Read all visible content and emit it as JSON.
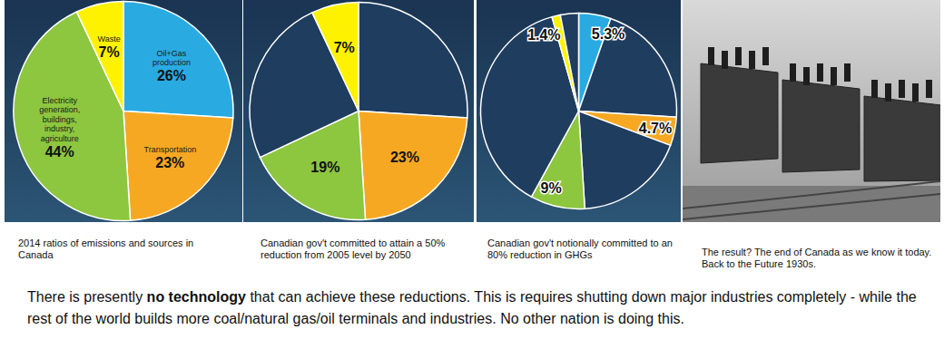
{
  "chart_data": [
    {
      "type": "pie",
      "caption": "2014 ratios of emissions and sources in Canada",
      "categories": [
        "Oil+Gas production",
        "Transportation",
        "Electricity generation, buildings, industry, agriculture",
        "Waste"
      ],
      "values": [
        26,
        23,
        44,
        7
      ],
      "value_labels": [
        "26%",
        "23%",
        "44%",
        "7%"
      ],
      "colors": [
        "#29abe2",
        "#f7a823",
        "#8dc63f",
        "#fff200"
      ],
      "data_labels": true
    },
    {
      "type": "pie",
      "caption": "Canadian gov't committed to attain a 50% reduction from 2005 level by 2050",
      "categories": [
        null,
        null,
        null,
        null,
        null
      ],
      "values": [
        26,
        23,
        19,
        25,
        7
      ],
      "value_labels": [
        null,
        "23%",
        "19%",
        null,
        "7%"
      ],
      "colors": [
        "#1f3d5f",
        "#f7a823",
        "#8dc63f",
        "#1f3d5f",
        "#fff200"
      ],
      "data_labels": true
    },
    {
      "type": "pie",
      "caption": "Canadian gov't notionally committed to an 80% reduction in GHGs",
      "categories": [
        null,
        null,
        null,
        null,
        null,
        null,
        null,
        null
      ],
      "values": [
        5.3,
        20.7,
        4.7,
        18.3,
        9,
        37.6,
        1.4,
        3
      ],
      "value_labels": [
        "5.3%",
        null,
        "4.7%",
        null,
        "9%",
        null,
        "1.4%",
        null
      ],
      "colors": [
        "#29abe2",
        "#1f3d5f",
        "#f7a823",
        "#1f3d5f",
        "#8dc63f",
        "#1f3d5f",
        "#fff200",
        "#1f3d5f"
      ],
      "data_labels": true
    }
  ],
  "photo": {
    "caption": "The result? The end of Canada as we know it today. Back to the Future 1930s."
  },
  "footer": [
    "There is presently ",
    "no technology",
    " that can achieve these reductions. This is requires shutting down major industries completely - while the rest of the world builds more coal/natural gas/oil terminals and industries. No other nation is doing this."
  ]
}
